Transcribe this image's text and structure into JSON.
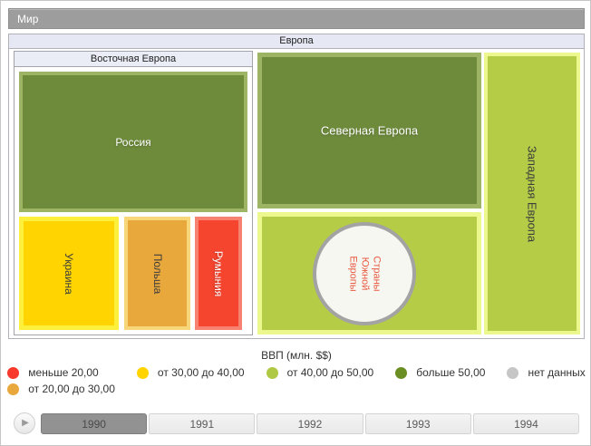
{
  "root": {
    "title": "Мир"
  },
  "treemap": {
    "header": "Европа",
    "eastern": {
      "header": "Восточная Европа",
      "russia": {
        "label": "Россия",
        "fill": "#6e8b3c",
        "border": "#9db465"
      },
      "ukraine": {
        "label": "Украина",
        "fill": "#ffd400",
        "border": "#fdf03c"
      },
      "poland": {
        "label": "Польша",
        "fill": "#e9a83c",
        "border": "#f8d77a"
      },
      "romania": {
        "label": "Румыния",
        "fill": "#f6452f",
        "border": "#f88272"
      }
    },
    "northern": {
      "label": "Северная Европа",
      "fill": "#6e8b3c",
      "border": "#9db465"
    },
    "southern": {
      "fill": "#b5cc47",
      "border": "#ecf78e",
      "circle": {
        "lines": [
          "Страны",
          "Южной",
          "Европы"
        ],
        "fill": "#f7f7f2",
        "border": "#a3a3a3",
        "text_color": "#e85a41"
      }
    },
    "western": {
      "label": "Западная Европа",
      "fill": "#b5cc47",
      "border": "#ecf78e"
    }
  },
  "legend": {
    "title": "ВВП (млн. $$)",
    "items": [
      {
        "label": "меньше 20,00",
        "color": "#f8392b"
      },
      {
        "label": "от 20,00 до 30,00",
        "color": "#e9a83c"
      },
      {
        "label": "от 30,00 до 40,00",
        "color": "#ffd400"
      },
      {
        "label": "от 40,00 до 50,00",
        "color": "#b0c944"
      },
      {
        "label": "больше 50,00",
        "color": "#6b8e23"
      },
      {
        "label": "нет данных",
        "color": "#c6c6c6"
      }
    ]
  },
  "timeline": {
    "play_glyph": "▶",
    "years": [
      {
        "label": "1990",
        "selected": true
      },
      {
        "label": "1991",
        "selected": false
      },
      {
        "label": "1992",
        "selected": false
      },
      {
        "label": "1993",
        "selected": false
      },
      {
        "label": "1994",
        "selected": false
      }
    ]
  },
  "chart_data": {
    "type": "treemap",
    "title": "Европа",
    "breadcrumb": "Мир",
    "legend_title": "ВВП (млн. $$)",
    "legend_categories": [
      "меньше 20,00",
      "от 20,00 до 30,00",
      "от 30,00 до 40,00",
      "от 40,00 до 50,00",
      "больше 50,00",
      "нет данных"
    ],
    "years": [
      "1990",
      "1991",
      "1992",
      "1993",
      "1994"
    ],
    "selected_year": "1990",
    "nodes": [
      {
        "group": "Восточная Европа",
        "name": "Россия",
        "category": "больше 50,00"
      },
      {
        "group": "Восточная Европа",
        "name": "Украина",
        "category": "от 30,00 до 40,00"
      },
      {
        "group": "Восточная Европа",
        "name": "Польша",
        "category": "от 20,00 до 30,00"
      },
      {
        "group": "Восточная Европа",
        "name": "Румыния",
        "category": "меньше 20,00"
      },
      {
        "group": "Европа",
        "name": "Северная Европа",
        "category": "больше 50,00"
      },
      {
        "group": "Европа",
        "name": "Страны Южной Европы",
        "category": "от 40,00 до 50,00",
        "shape": "circle"
      },
      {
        "group": "Европа",
        "name": "Западная Европа",
        "category": "от 40,00 до 50,00"
      }
    ]
  }
}
